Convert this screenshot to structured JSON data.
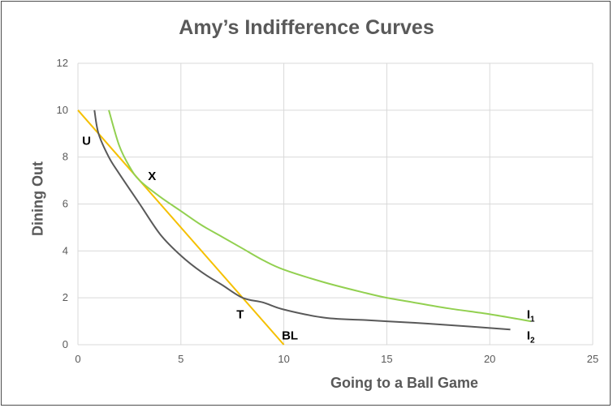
{
  "chart_data": {
    "type": "line",
    "title": "Amy’s Indifference Curves",
    "xlabel": "Going to a Ball Game",
    "ylabel": "Dining Out",
    "xlim": [
      0,
      25
    ],
    "ylim": [
      0,
      12
    ],
    "xticks": [
      0,
      5,
      10,
      15,
      20,
      25
    ],
    "yticks": [
      0,
      2,
      4,
      6,
      8,
      10,
      12
    ],
    "grid": true,
    "series": [
      {
        "id": "budget",
        "color": "#f5c000",
        "points": [
          [
            0,
            10
          ],
          [
            10,
            0
          ]
        ]
      },
      {
        "id": "I1",
        "color": "#92d050",
        "points": [
          [
            1.5,
            10
          ],
          [
            2.0,
            8.5
          ],
          [
            2.5,
            7.6
          ],
          [
            3.0,
            7.0
          ],
          [
            4.0,
            6.3
          ],
          [
            5.0,
            5.7
          ],
          [
            6.0,
            5.1
          ],
          [
            7.0,
            4.6
          ],
          [
            8.0,
            4.1
          ],
          [
            9.0,
            3.6
          ],
          [
            10.0,
            3.2
          ],
          [
            12.0,
            2.65
          ],
          [
            14.0,
            2.2
          ],
          [
            15.0,
            2.0
          ],
          [
            16.0,
            1.85
          ],
          [
            18.0,
            1.55
          ],
          [
            20.0,
            1.3
          ],
          [
            22.0,
            1.0
          ]
        ]
      },
      {
        "id": "I2",
        "color": "#595959",
        "points": [
          [
            0.8,
            10
          ],
          [
            1.0,
            9.0
          ],
          [
            1.5,
            8.0
          ],
          [
            2.0,
            7.3
          ],
          [
            3.0,
            6.0
          ],
          [
            4.0,
            4.7
          ],
          [
            5.0,
            3.8
          ],
          [
            6.0,
            3.1
          ],
          [
            7.0,
            2.55
          ],
          [
            8.0,
            2.0
          ],
          [
            9.0,
            1.8
          ],
          [
            10.0,
            1.5
          ],
          [
            12.0,
            1.15
          ],
          [
            14.0,
            1.05
          ],
          [
            15.0,
            1.0
          ],
          [
            17.0,
            0.9
          ],
          [
            19.0,
            0.78
          ],
          [
            21.0,
            0.65
          ]
        ]
      }
    ],
    "annotations": [
      {
        "text": "U",
        "x": 0.2,
        "y": 8.7
      },
      {
        "text": "X",
        "x": 3.4,
        "y": 7.2
      },
      {
        "text": "T",
        "x": 7.7,
        "y": 1.3
      },
      {
        "text": "BL",
        "x": 9.9,
        "y": 0.4
      },
      {
        "text": "I",
        "sub": "1",
        "x": 21.8,
        "y": 1.3
      },
      {
        "text": "I",
        "sub": "2",
        "x": 21.8,
        "y": 0.4
      }
    ]
  }
}
